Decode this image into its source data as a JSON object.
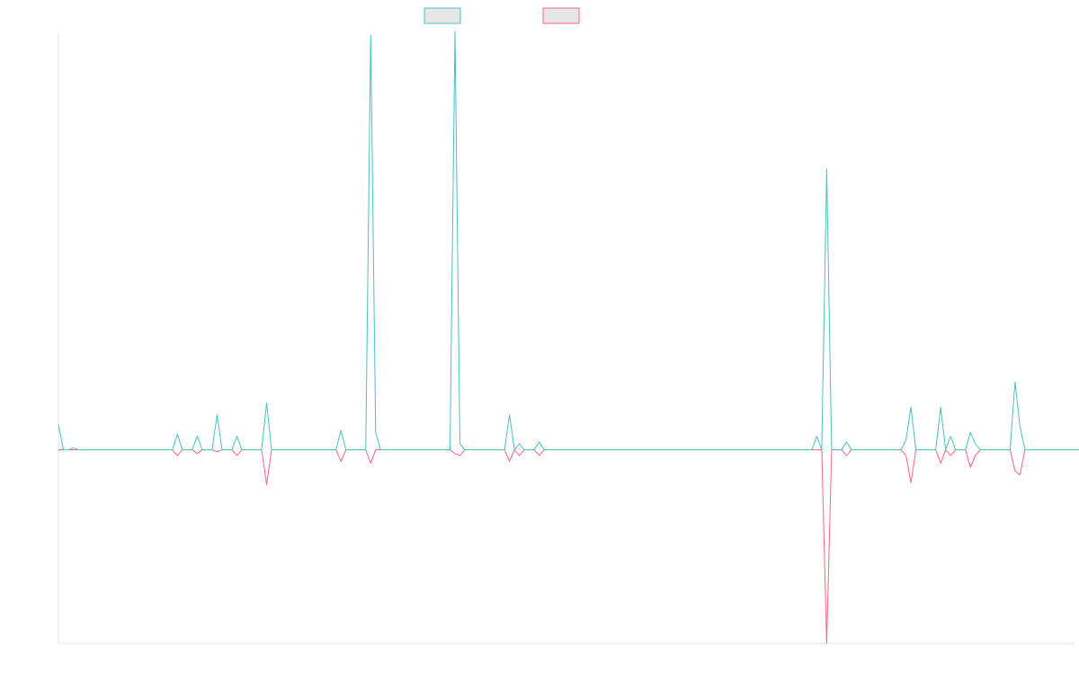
{
  "chart_data": {
    "type": "line",
    "title": "",
    "xlabel": "",
    "ylabel": "",
    "grid": false,
    "legend_placement": "top-center",
    "x_range": [
      0,
      205
    ],
    "ylim": [
      -1.0,
      2.15
    ],
    "series": [
      {
        "color": "#4bc0c0",
        "fill": "#e6e6e6",
        "values": [
          0.13,
          0,
          0,
          0.01,
          0,
          0,
          0,
          0,
          0,
          0,
          0,
          0,
          0,
          0,
          0,
          0,
          0,
          0,
          0,
          0,
          0,
          0,
          0,
          0,
          0.08,
          0,
          0,
          0,
          0.07,
          0,
          0,
          0,
          0.18,
          0,
          0,
          0,
          0.07,
          0,
          0,
          0,
          0,
          0,
          0.24,
          0,
          0,
          0,
          0,
          0,
          0,
          0,
          0,
          0,
          0,
          0,
          0,
          0,
          0,
          0.1,
          0,
          0,
          0,
          0,
          0,
          2.14,
          0.09,
          0,
          0,
          0,
          0,
          0,
          0,
          0,
          0,
          0,
          0,
          0,
          0,
          0,
          0,
          0,
          2.16,
          0.03,
          0,
          0,
          0,
          0,
          0,
          0,
          0,
          0,
          0,
          0.18,
          0,
          0.03,
          0,
          0,
          0,
          0.04,
          0,
          0,
          0,
          0,
          0,
          0,
          0,
          0,
          0,
          0,
          0,
          0,
          0,
          0,
          0,
          0,
          0,
          0,
          0,
          0,
          0,
          0,
          0,
          0,
          0,
          0,
          0,
          0,
          0,
          0,
          0,
          0,
          0,
          0,
          0,
          0,
          0,
          0,
          0,
          0,
          0,
          0,
          0,
          0,
          0,
          0,
          0,
          0,
          0,
          0,
          0,
          0,
          0,
          0,
          0,
          0.07,
          0,
          1.45,
          0,
          0,
          0,
          0.04,
          0,
          0,
          0,
          0,
          0,
          0,
          0,
          0,
          0,
          0,
          0,
          0.05,
          0.22,
          0,
          0,
          0,
          0,
          0,
          0.22,
          0,
          0.07,
          0,
          0,
          0,
          0.09,
          0.03,
          0,
          0,
          0,
          0,
          0,
          0,
          0,
          0.35,
          0.12,
          0,
          0,
          0,
          0,
          0,
          0,
          0,
          0,
          0,
          0,
          0,
          0,
          0,
          0,
          0,
          0,
          0
        ]
      },
      {
        "color": "#ff6384",
        "fill": "#e6e6e6",
        "values": [
          0,
          0,
          0,
          0,
          0,
          0,
          0,
          0,
          0,
          0,
          0,
          0,
          0,
          0,
          0,
          0,
          0,
          0,
          0,
          0,
          0,
          0,
          0,
          0,
          -0.03,
          0,
          0,
          0,
          -0.02,
          0,
          0,
          0,
          -0.01,
          0,
          0,
          0,
          -0.03,
          0,
          0,
          0,
          0,
          0,
          -0.18,
          0,
          0,
          0,
          0,
          0,
          0,
          0,
          0,
          0,
          0,
          0,
          0,
          0,
          0,
          -0.06,
          0,
          0,
          0,
          0,
          0,
          -0.07,
          0,
          0,
          0,
          0,
          0,
          0,
          0,
          0,
          0,
          0,
          0,
          0,
          0,
          0,
          0,
          0,
          -0.02,
          -0.03,
          0,
          0,
          0,
          0,
          0,
          0,
          0,
          0,
          0,
          -0.06,
          0,
          -0.03,
          0,
          0,
          0,
          -0.03,
          0,
          0,
          0,
          0,
          0,
          0,
          0,
          0,
          0,
          0,
          0,
          0,
          0,
          0,
          0,
          0,
          0,
          0,
          0,
          0,
          0,
          0,
          0,
          0,
          0,
          0,
          0,
          0,
          0,
          0,
          0,
          0,
          0,
          0,
          0,
          0,
          0,
          0,
          0,
          0,
          0,
          0,
          0,
          0,
          0,
          0,
          0,
          0,
          0,
          0,
          0,
          0,
          0,
          0,
          0,
          0,
          0,
          -1.0,
          0,
          0,
          0,
          -0.03,
          0,
          0,
          0,
          0,
          0,
          0,
          0,
          0,
          0,
          0,
          0,
          -0.03,
          -0.17,
          0,
          0,
          0,
          0,
          0,
          -0.07,
          0,
          -0.03,
          0,
          0,
          0,
          -0.09,
          -0.03,
          0,
          0,
          0,
          0,
          0,
          0,
          0,
          -0.11,
          -0.13,
          0,
          0,
          0,
          0,
          0,
          0,
          0,
          0,
          0,
          0,
          0,
          0,
          0,
          0,
          0,
          0,
          0
        ]
      }
    ]
  }
}
